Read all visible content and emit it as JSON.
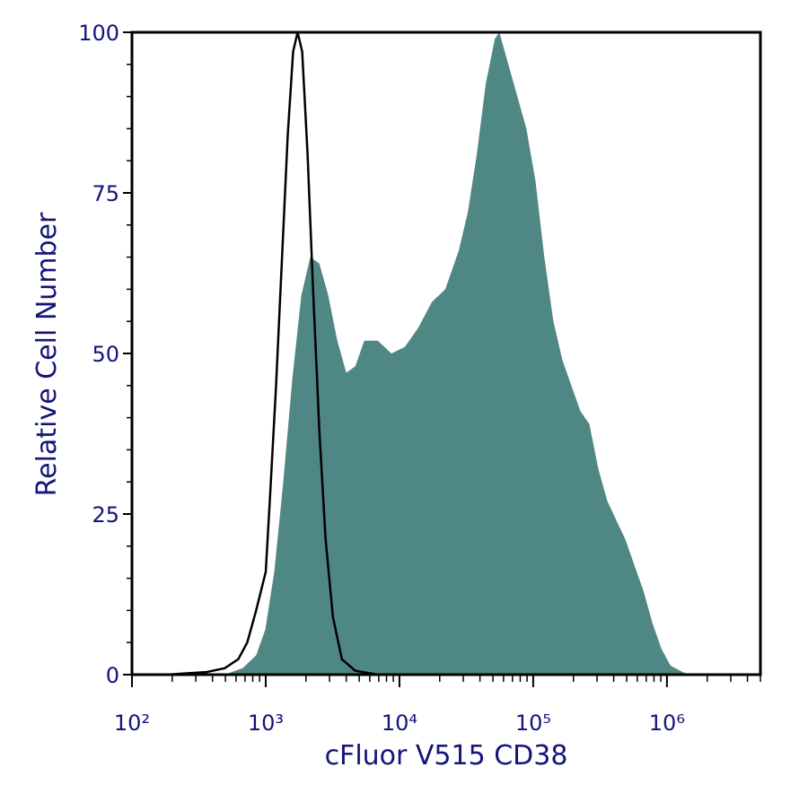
{
  "chart_data": {
    "type": "histogram",
    "xlabel": "cFluor V515 CD38",
    "ylabel": "Relative Cell Number",
    "xscale": "log",
    "xlim": [
      100,
      5000000
    ],
    "ylim": [
      0,
      100
    ],
    "xticks": [
      {
        "value": 100,
        "label": "10²"
      },
      {
        "value": 1000,
        "label": "10³"
      },
      {
        "value": 10000,
        "label": "10⁴"
      },
      {
        "value": 100000,
        "label": "10⁵"
      },
      {
        "value": 1000000,
        "label": "10⁶"
      }
    ],
    "yticks": [
      0,
      25,
      50,
      75,
      100
    ],
    "series": [
      {
        "color": "#4f8784",
        "filled": true,
        "x": [
          494,
          673,
          848,
          993,
          1159,
          1353,
          1580,
          1845,
          2154,
          2516,
          2937,
          3429,
          4005,
          4676,
          5459,
          6887,
          8690,
          10960,
          13830,
          17450,
          22020,
          27780,
          32440,
          37880,
          44240,
          51650,
          55810,
          65170,
          76120,
          88880,
          103800,
          121200,
          141500,
          165300,
          193000,
          225400,
          263200,
          307300,
          359000,
          419200,
          489500,
          572000,
          668000,
          780000,
          911000,
          1064000,
          1342000,
          1567000
        ],
        "values": [
          0,
          1,
          3,
          7,
          16,
          30,
          46,
          59,
          65,
          64,
          59,
          52,
          47,
          48,
          52,
          52,
          50,
          51,
          54,
          58,
          60,
          66,
          72,
          81,
          92,
          99,
          100,
          95,
          90,
          85,
          77,
          65,
          55,
          49,
          45,
          41,
          39,
          32,
          27,
          24,
          21,
          17,
          13,
          8,
          4,
          1.4,
          0.3,
          0
        ]
      },
      {
        "color": "#000000",
        "filled": false,
        "x": [
          180,
          362,
          494,
          623,
          728,
          848,
          1000,
          1072,
          1195,
          1311,
          1462,
          1604,
          1733,
          1874,
          2056,
          2258,
          2516,
          2805,
          3177,
          3710,
          4676,
          6887
        ],
        "values": [
          0,
          0.4,
          1,
          2.4,
          5,
          10,
          16,
          27,
          45,
          63,
          84,
          97,
          100,
          97,
          81,
          60,
          38,
          21,
          9,
          2.4,
          0.6,
          0
        ]
      }
    ]
  }
}
